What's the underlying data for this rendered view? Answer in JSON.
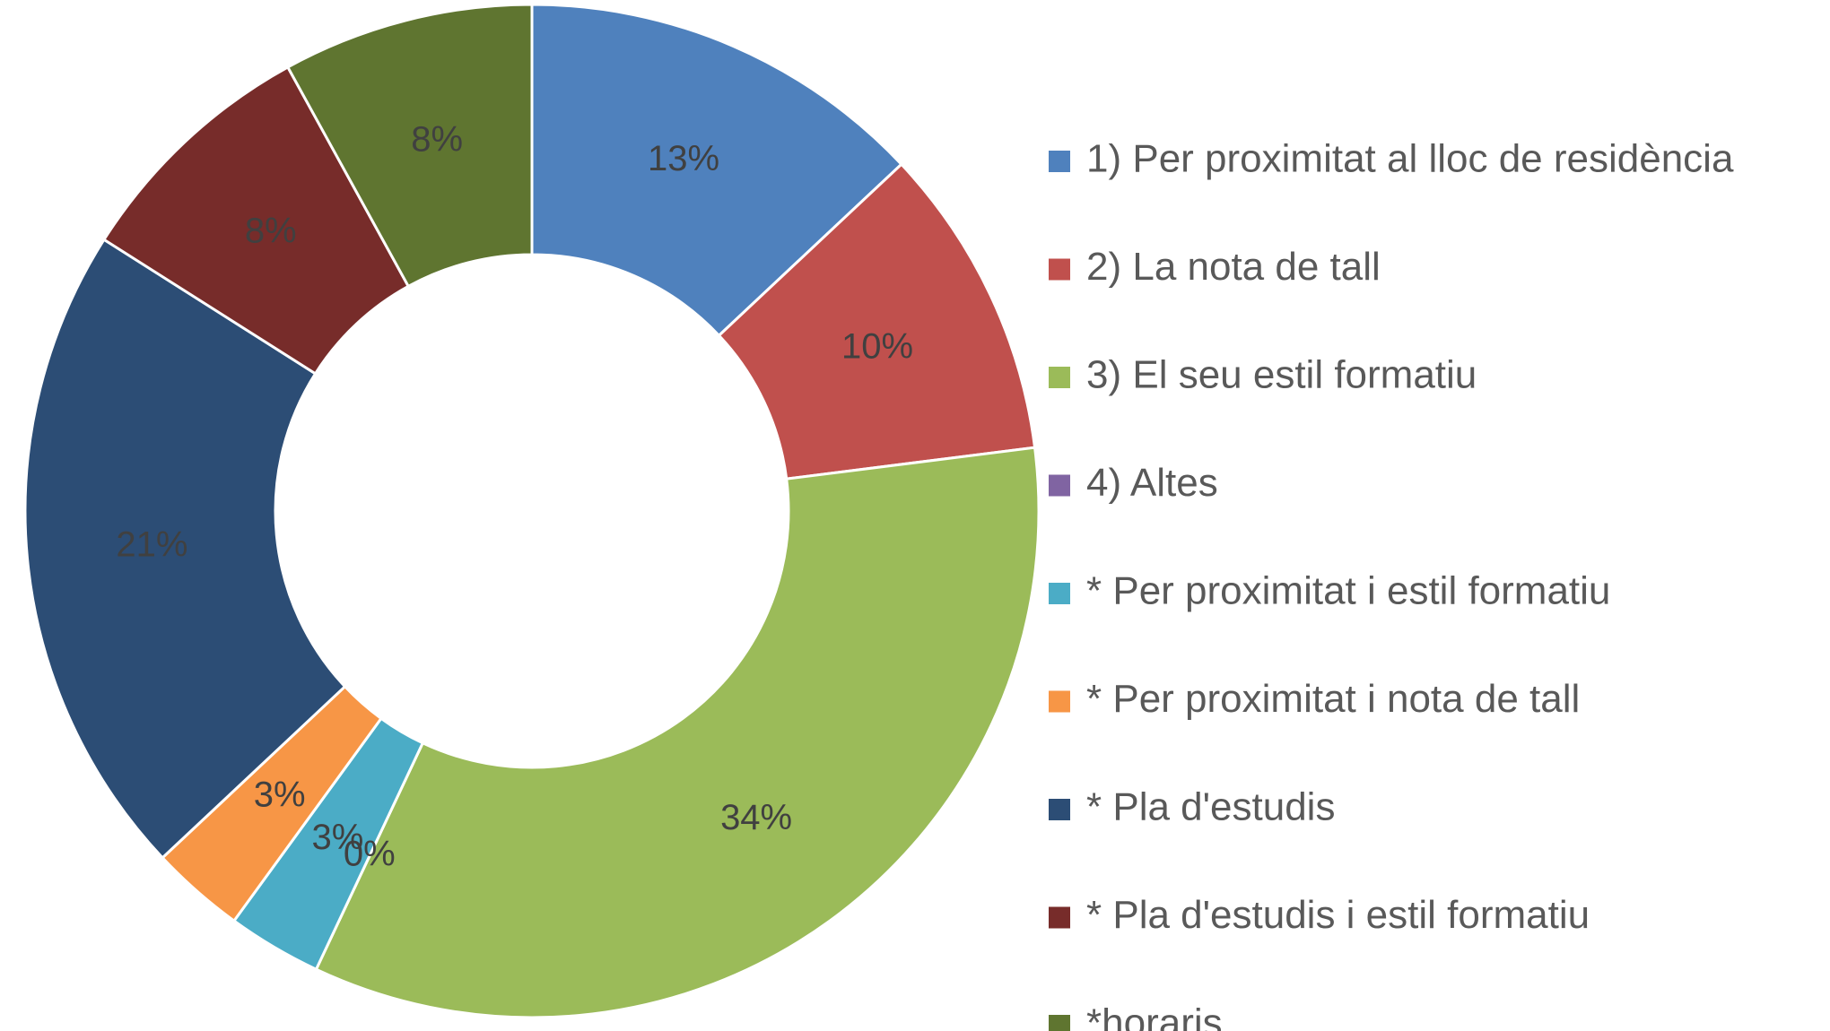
{
  "chart_data": {
    "type": "pie",
    "categories": [
      "1) Per proximitat al lloc de residència",
      "2) La nota de tall",
      "3) El seu estil formatiu",
      "4) Altes",
      "* Per proximitat i estil formatiu",
      "* Per proximitat i nota de tall",
      "* Pla d'estudis",
      "* Pla d'estudis i estil formatiu",
      "*horaris"
    ],
    "values": [
      13,
      10,
      34,
      0,
      3,
      3,
      21,
      8,
      8
    ],
    "value_labels": [
      "13%",
      "10%",
      "34%",
      "0%",
      "3%",
      "3%",
      "21%",
      "8%",
      "8%"
    ],
    "colors": [
      "#4f81bd",
      "#c0504d",
      "#9bbb59",
      "#8064a2",
      "#4bacc6",
      "#f79646",
      "#2c4d75",
      "#772c2a",
      "#5f7530"
    ],
    "donut": true,
    "legend": "right"
  }
}
